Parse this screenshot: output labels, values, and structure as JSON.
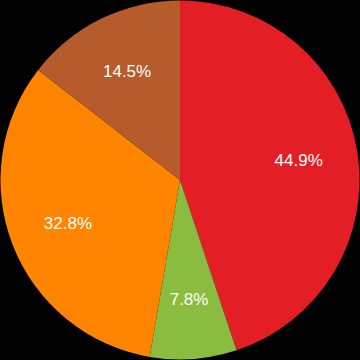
{
  "chart_data": {
    "type": "pie",
    "values": [
      44.9,
      7.8,
      32.8,
      14.5
    ],
    "value_labels": [
      "44.9%",
      "7.8%",
      "32.8%",
      "14.5%"
    ],
    "colors": [
      "#e31e24",
      "#8abd3f",
      "#ff8400",
      "#b65b2b"
    ],
    "data_labels": true
  }
}
